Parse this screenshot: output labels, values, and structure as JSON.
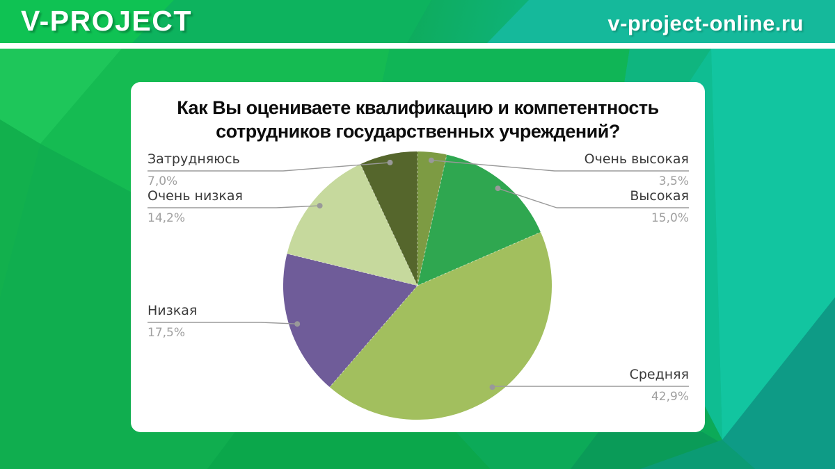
{
  "header": {
    "brand": "V-PROJECT",
    "site": "v-project-online.ru"
  },
  "chart_data": {
    "type": "pie",
    "title": "Как Вы оцениваете квалификацию и компетентность сотрудников государственных учреждений?",
    "title_lines": [
      "Как Вы оцениваете квалификацию и компетентность",
      "сотрудников государственных учреждений?"
    ],
    "direction": "clockwise",
    "start_angle_deg": 0,
    "legend_position": "callout-labels",
    "slices": [
      {
        "label": "Очень высокая",
        "value": 3.5,
        "display": "3,5%",
        "color": "#7d9b43"
      },
      {
        "label": "Высокая",
        "value": 15.0,
        "display": "15,0%",
        "color": "#2fa750"
      },
      {
        "label": "Средняя",
        "value": 42.9,
        "display": "42,9%",
        "color": "#a2bf5e"
      },
      {
        "label": "Низкая",
        "value": 17.5,
        "display": "17,5%",
        "color": "#6f5c99"
      },
      {
        "label": "Очень низкая",
        "value": 14.2,
        "display": "14,2%",
        "color": "#c6d99d"
      },
      {
        "label": "Затрудняюсь",
        "value": 7.0,
        "display": "7,0%",
        "color": "#55662c"
      }
    ]
  },
  "colors": {
    "brand_green": "#12b750",
    "brand_teal": "#11c09c",
    "label_text": "#3a3a3a",
    "percent_text": "#a0a0a0",
    "leader_line": "#999999"
  }
}
